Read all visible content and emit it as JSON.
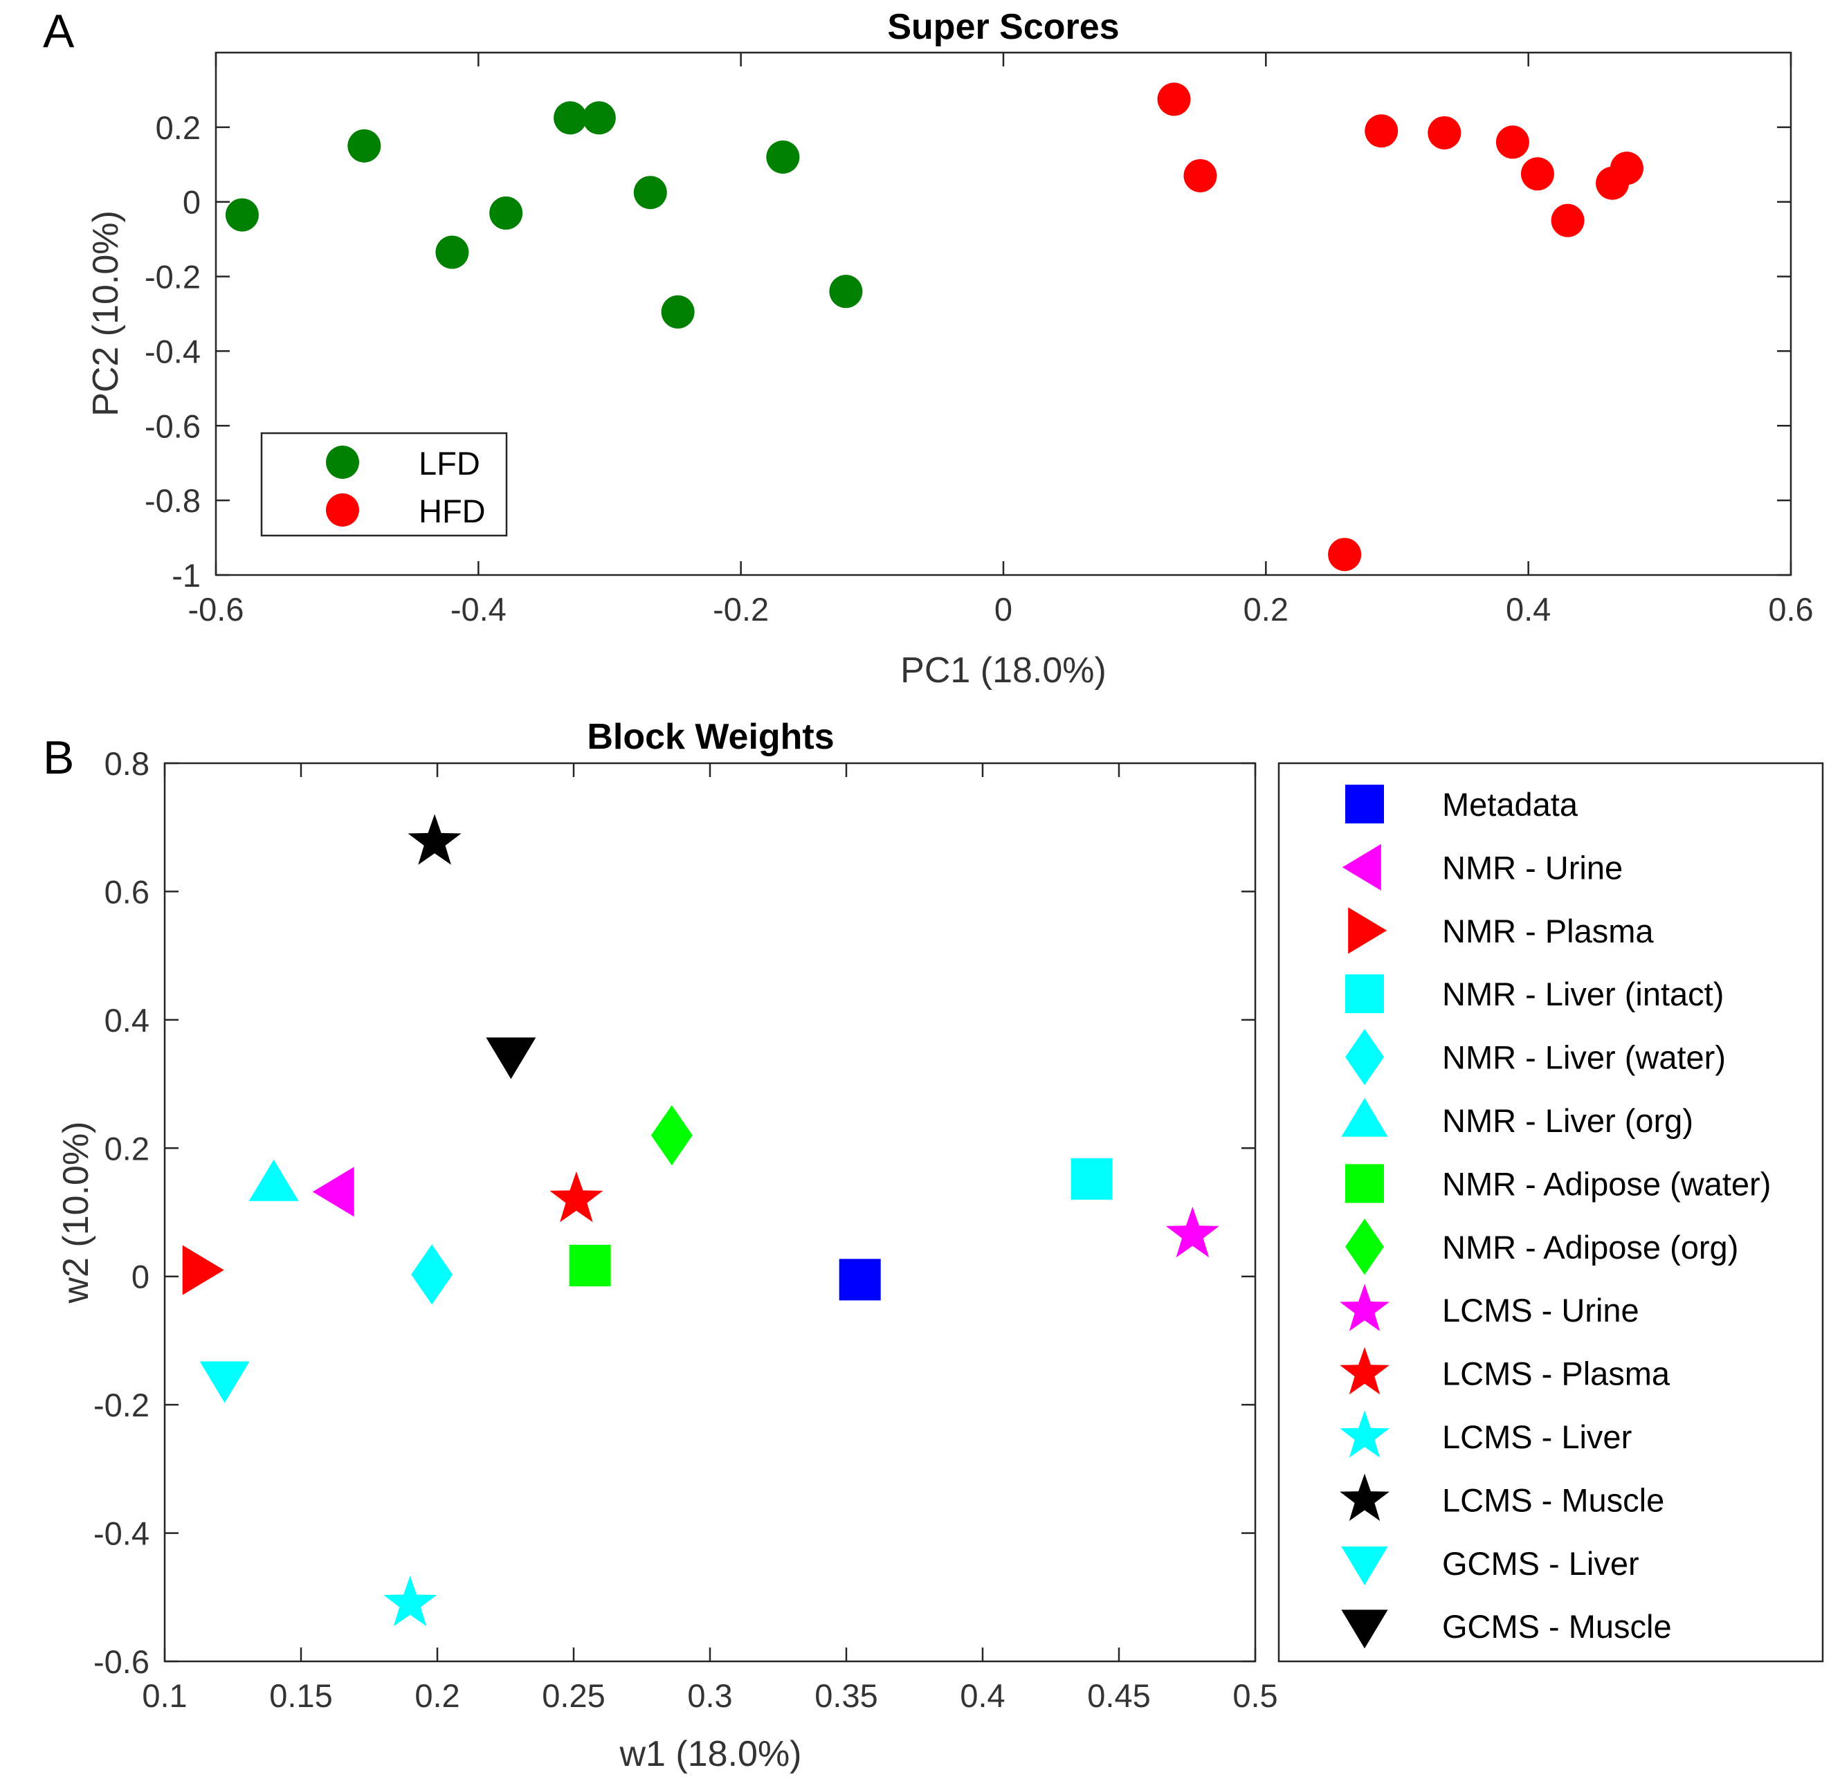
{
  "chart_data": [
    {
      "panel": "A",
      "type": "scatter",
      "title": "Super Scores",
      "xlabel": "PC1 (18.0%)",
      "ylabel": "PC2 (10.0%)",
      "xlim": [
        -0.6,
        0.6
      ],
      "ylim": [
        -1,
        0.4
      ],
      "xticks": [
        "-0.6",
        "-0.4",
        "-0.2",
        "0",
        "0.2",
        "0.4",
        "0.6"
      ],
      "yticks": [
        "-1",
        "-0.8",
        "-0.6",
        "-0.4",
        "-0.2",
        "0",
        "0.2"
      ],
      "grid": false,
      "legend_position": "lower-left",
      "series": [
        {
          "name": "LFD",
          "color": "#008000",
          "marker": "circle",
          "points": [
            {
              "x": -0.58,
              "y": -0.035
            },
            {
              "x": -0.487,
              "y": 0.15
            },
            {
              "x": -0.42,
              "y": -0.135
            },
            {
              "x": -0.379,
              "y": -0.03
            },
            {
              "x": -0.33,
              "y": 0.225
            },
            {
              "x": -0.308,
              "y": 0.225
            },
            {
              "x": -0.269,
              "y": 0.025
            },
            {
              "x": -0.248,
              "y": -0.295
            },
            {
              "x": -0.168,
              "y": 0.12
            },
            {
              "x": -0.12,
              "y": -0.24
            }
          ]
        },
        {
          "name": "HFD",
          "color": "#ff0000",
          "marker": "circle",
          "points": [
            {
              "x": 0.13,
              "y": 0.275
            },
            {
              "x": 0.15,
              "y": 0.07
            },
            {
              "x": 0.26,
              "y": -0.945
            },
            {
              "x": 0.288,
              "y": 0.19
            },
            {
              "x": 0.336,
              "y": 0.185
            },
            {
              "x": 0.388,
              "y": 0.16
            },
            {
              "x": 0.407,
              "y": 0.075
            },
            {
              "x": 0.43,
              "y": -0.05
            },
            {
              "x": 0.464,
              "y": 0.05
            },
            {
              "x": 0.475,
              "y": 0.09
            }
          ]
        }
      ]
    },
    {
      "panel": "B",
      "type": "scatter",
      "title": "Block Weights",
      "xlabel": "w1 (18.0%)",
      "ylabel": "w2 (10.0%)",
      "xlim": [
        0.1,
        0.5
      ],
      "ylim": [
        -0.6,
        0.8
      ],
      "xticks": [
        "0.1",
        "0.15",
        "0.2",
        "0.25",
        "0.3",
        "0.35",
        "0.4",
        "0.45",
        "0.5"
      ],
      "yticks": [
        "-0.6",
        "-0.4",
        "-0.2",
        "0",
        "0.2",
        "0.4",
        "0.6",
        "0.8"
      ],
      "grid": false,
      "legend_position": "outside-right",
      "series": [
        {
          "name": "Metadata",
          "color": "#0000ff",
          "marker": "square",
          "x": 0.355,
          "y": -0.005
        },
        {
          "name": "NMR - Urine",
          "color": "#ff00ff",
          "marker": "triangle-left",
          "x": 0.163,
          "y": 0.132
        },
        {
          "name": "NMR - Plasma",
          "color": "#ff0000",
          "marker": "triangle-right",
          "x": 0.113,
          "y": 0.01
        },
        {
          "name": "NMR - Liver (intact)",
          "color": "#00ffff",
          "marker": "square",
          "x": 0.44,
          "y": 0.152
        },
        {
          "name": "NMR - Liver (water)",
          "color": "#00ffff",
          "marker": "diamond",
          "x": 0.198,
          "y": 0.003
        },
        {
          "name": "NMR - Liver (org)",
          "color": "#00ffff",
          "marker": "triangle-up",
          "x": 0.14,
          "y": 0.145
        },
        {
          "name": "NMR - Adipose (water)",
          "color": "#00ff00",
          "marker": "square",
          "x": 0.256,
          "y": 0.017
        },
        {
          "name": "NMR - Adipose (org)",
          "color": "#00ff00",
          "marker": "diamond",
          "x": 0.286,
          "y": 0.22
        },
        {
          "name": "LCMS - Urine",
          "color": "#ff00ff",
          "marker": "star",
          "x": 0.477,
          "y": 0.065
        },
        {
          "name": "LCMS - Plasma",
          "color": "#ff0000",
          "marker": "star",
          "x": 0.251,
          "y": 0.12
        },
        {
          "name": "LCMS - Liver",
          "color": "#00ffff",
          "marker": "star",
          "x": 0.19,
          "y": -0.51
        },
        {
          "name": "LCMS - Muscle",
          "color": "#000000",
          "marker": "star",
          "x": 0.199,
          "y": 0.677
        },
        {
          "name": "GCMS - Liver",
          "color": "#00ffff",
          "marker": "triangle-down",
          "x": 0.122,
          "y": -0.16
        },
        {
          "name": "GCMS - Muscle",
          "color": "#000000",
          "marker": "triangle-down",
          "x": 0.227,
          "y": 0.345
        }
      ]
    }
  ]
}
